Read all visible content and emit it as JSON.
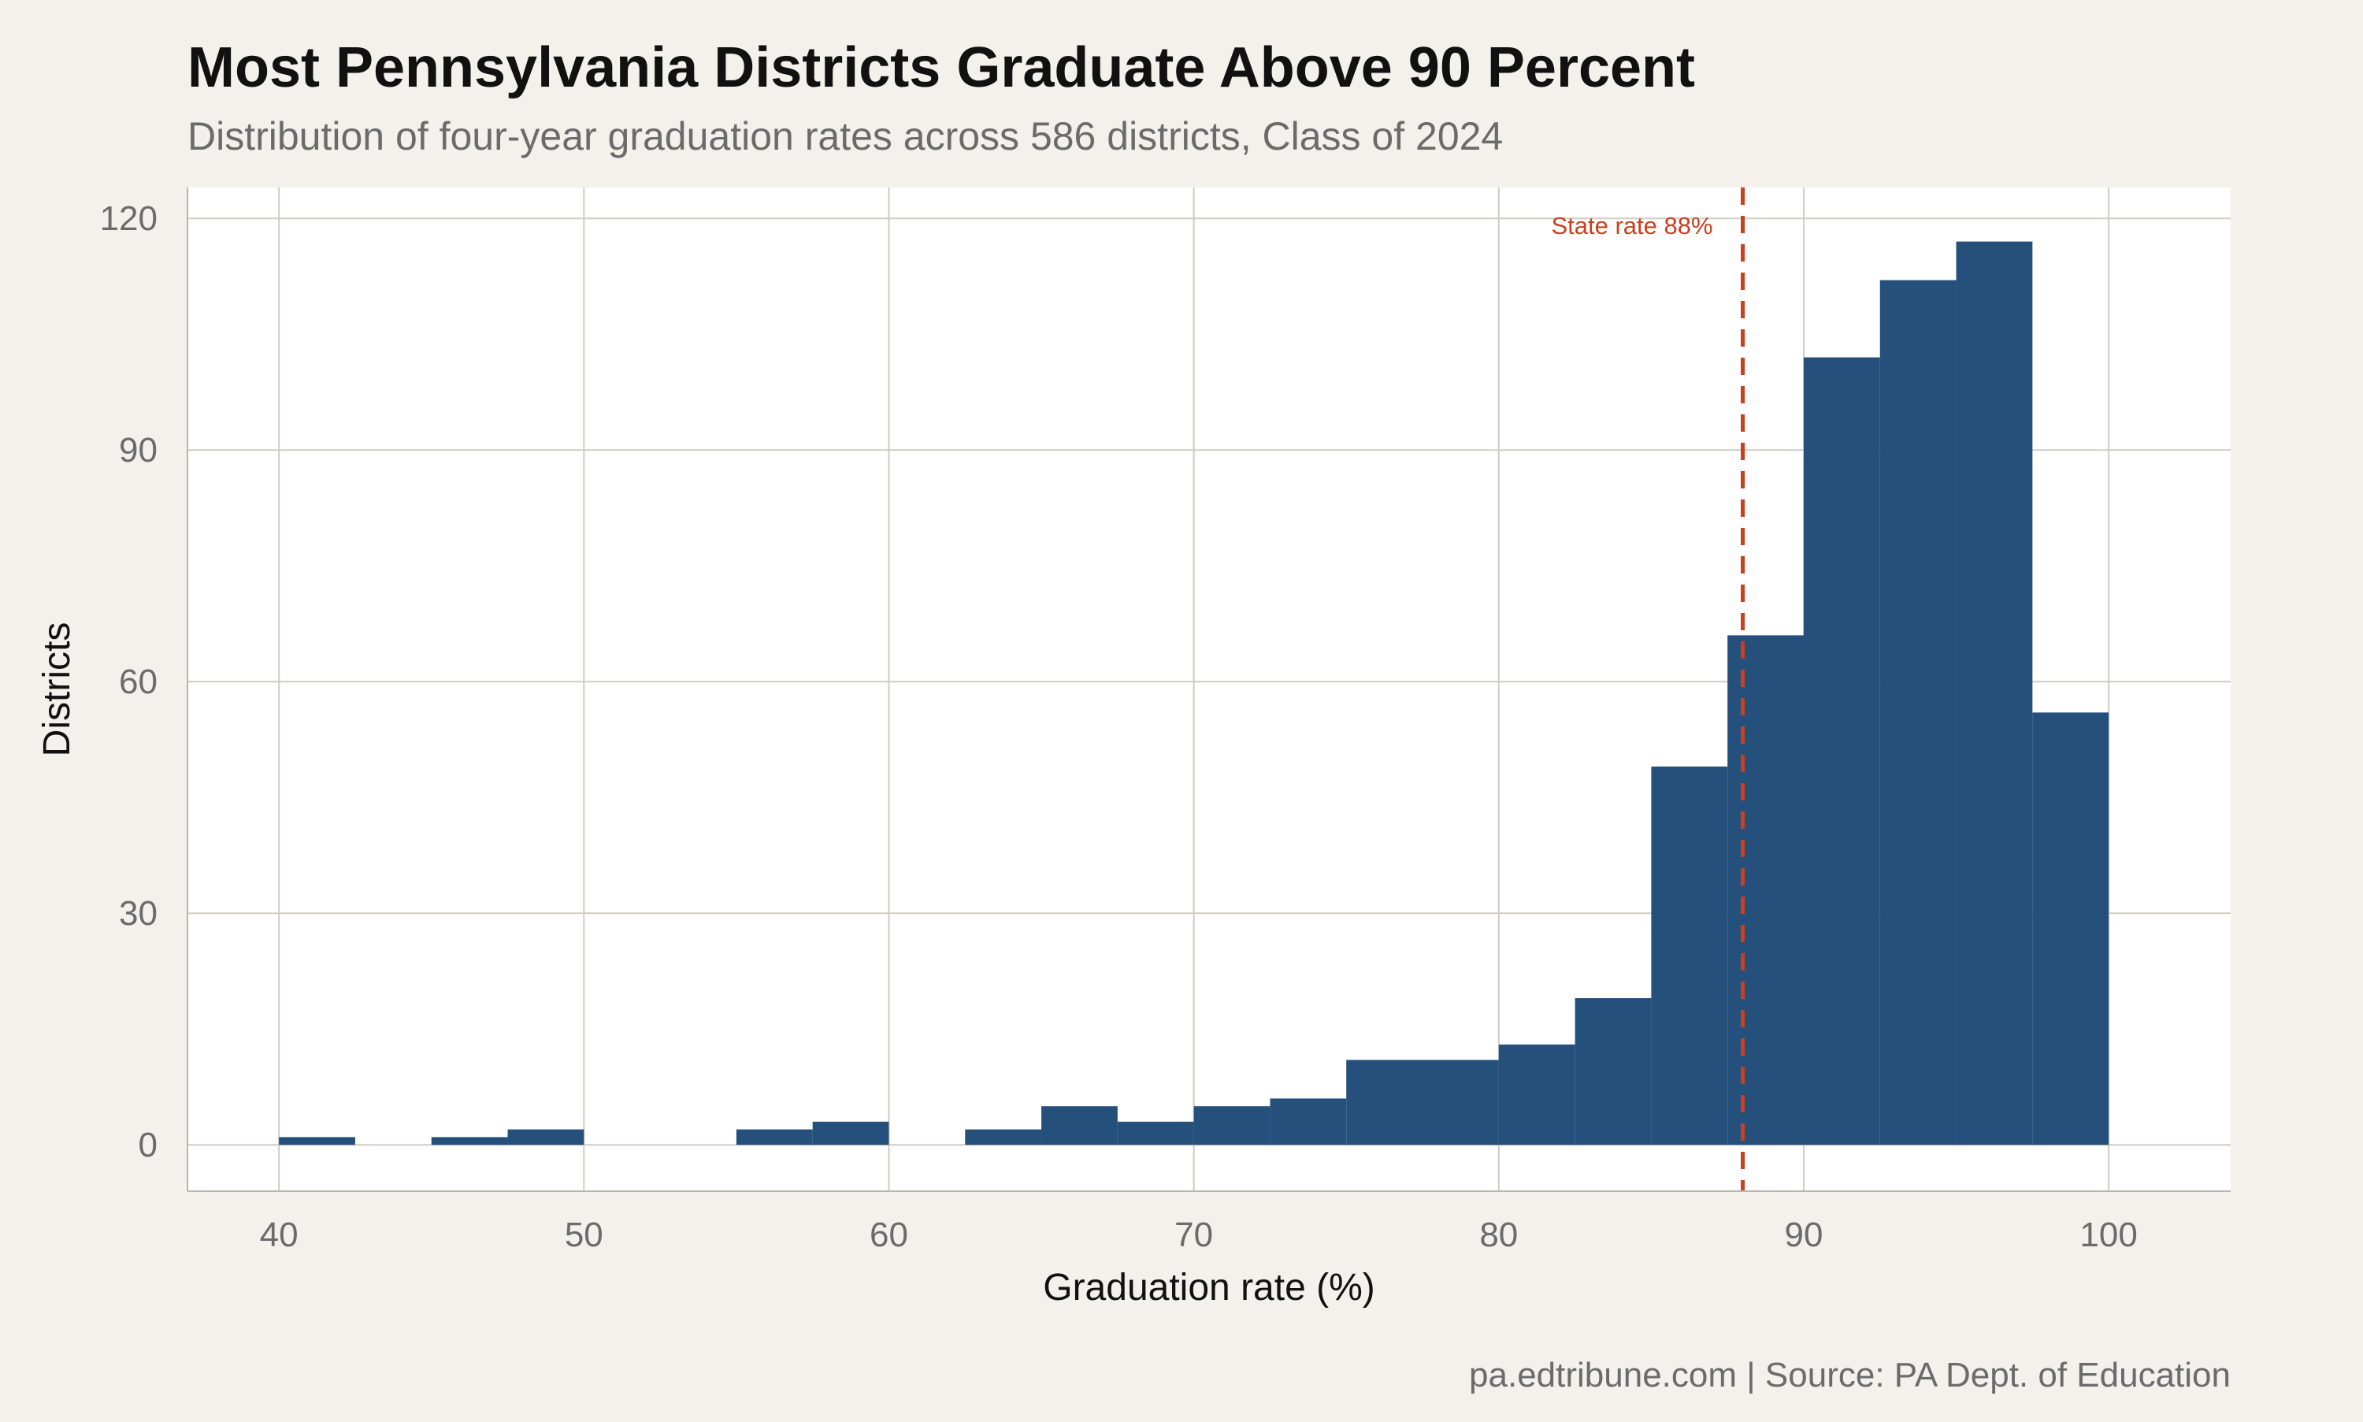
{
  "title": "Most Pennsylvania Districts Graduate Above 90 Percent",
  "subtitle": "Distribution of four-year graduation rates across 586 districts, Class of 2024",
  "caption": "pa.edtribune.com | Source: PA Dept. of Education",
  "colors": {
    "background": "#f4f1ec",
    "panel": "#ffffff",
    "bar": "#1f4a78",
    "grid": "#cfccc4",
    "reference_line": "#c8401f"
  },
  "chart_data": {
    "type": "bar",
    "title": "Most Pennsylvania Districts Graduate Above 90 Percent",
    "subtitle": "Distribution of four-year graduation rates across 586 districts, Class of 2024",
    "xlabel": "Graduation rate (%)",
    "ylabel": "Districts",
    "xlim": [
      37,
      104
    ],
    "ylim": [
      -6,
      124
    ],
    "x_ticks": [
      40,
      50,
      60,
      70,
      80,
      90,
      100
    ],
    "y_ticks": [
      0,
      30,
      60,
      90,
      120
    ],
    "bin_width": 2.5,
    "bins": [
      {
        "x0": 40,
        "x1": 42.5,
        "count": 1
      },
      {
        "x0": 42.5,
        "x1": 45,
        "count": 0
      },
      {
        "x0": 45,
        "x1": 47.5,
        "count": 1
      },
      {
        "x0": 47.5,
        "x1": 50,
        "count": 2
      },
      {
        "x0": 50,
        "x1": 52.5,
        "count": 0
      },
      {
        "x0": 52.5,
        "x1": 55,
        "count": 0
      },
      {
        "x0": 55,
        "x1": 57.5,
        "count": 2
      },
      {
        "x0": 57.5,
        "x1": 60,
        "count": 3
      },
      {
        "x0": 60,
        "x1": 62.5,
        "count": 0
      },
      {
        "x0": 62.5,
        "x1": 65,
        "count": 2
      },
      {
        "x0": 65,
        "x1": 67.5,
        "count": 5
      },
      {
        "x0": 67.5,
        "x1": 70,
        "count": 3
      },
      {
        "x0": 70,
        "x1": 72.5,
        "count": 5
      },
      {
        "x0": 72.5,
        "x1": 75,
        "count": 6
      },
      {
        "x0": 75,
        "x1": 77.5,
        "count": 11
      },
      {
        "x0": 77.5,
        "x1": 80,
        "count": 11
      },
      {
        "x0": 80,
        "x1": 82.5,
        "count": 13
      },
      {
        "x0": 82.5,
        "x1": 85,
        "count": 19
      },
      {
        "x0": 85,
        "x1": 87.5,
        "count": 49
      },
      {
        "x0": 87.5,
        "x1": 90,
        "count": 66
      },
      {
        "x0": 90,
        "x1": 92.5,
        "count": 102
      },
      {
        "x0": 92.5,
        "x1": 95,
        "count": 112
      },
      {
        "x0": 95,
        "x1": 97.5,
        "count": 117
      },
      {
        "x0": 97.5,
        "x1": 100,
        "count": 56
      }
    ],
    "reference_line": {
      "x": 88,
      "label": "State rate 88%",
      "style": "dashed"
    },
    "grid": true,
    "legend": "none"
  }
}
